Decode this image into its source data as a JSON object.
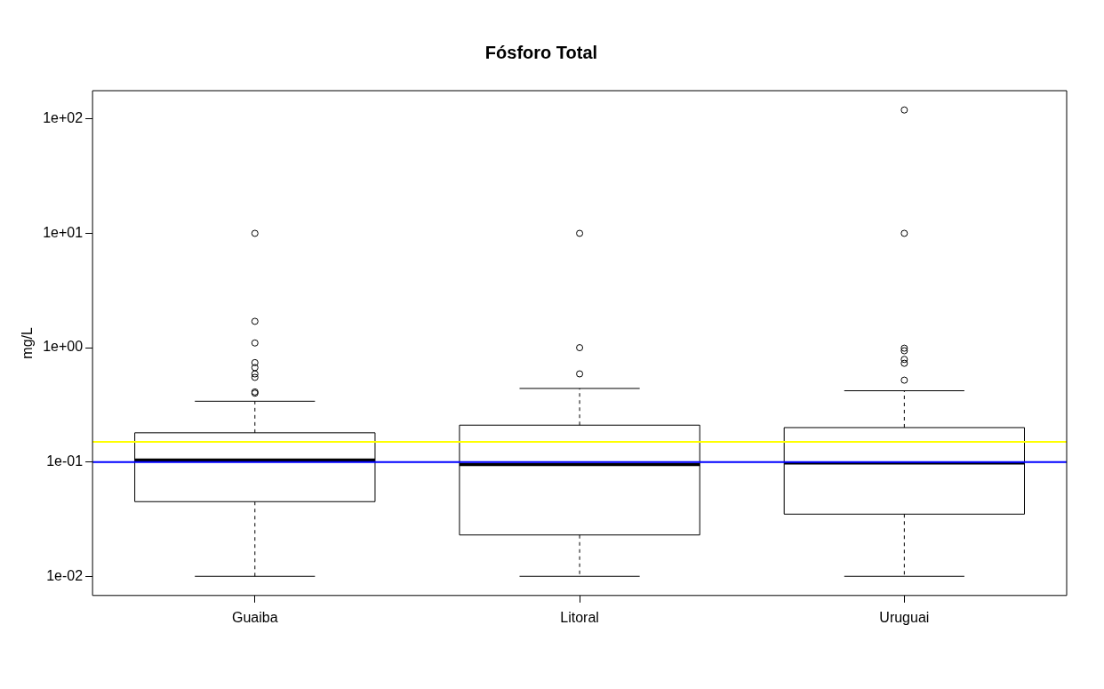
{
  "chart_data": {
    "type": "box",
    "title": "Fósforo Total",
    "ylabel": "mg/L",
    "categories": [
      "Guaiba",
      "Litoral",
      "Uruguai"
    ],
    "boxes": [
      {
        "low": 0.01,
        "q1": 0.045,
        "median": 0.104,
        "q3": 0.18,
        "high": 0.34,
        "outliers": [
          0.4,
          0.41,
          0.55,
          0.59,
          0.67,
          0.74,
          1.1,
          1.7,
          10
        ]
      },
      {
        "low": 0.01,
        "q1": 0.023,
        "median": 0.095,
        "q3": 0.21,
        "high": 0.44,
        "outliers": [
          0.59,
          1.0,
          10
        ]
      },
      {
        "low": 0.01,
        "q1": 0.035,
        "median": 0.098,
        "q3": 0.2,
        "high": 0.42,
        "outliers": [
          0.52,
          0.73,
          0.79,
          0.94,
          0.99,
          10,
          120
        ]
      }
    ],
    "color": "#000000",
    "log": true,
    "ylim": [
      0.0068,
      177
    ],
    "yticks": [
      {
        "value": 0.01,
        "label": "1e-02"
      },
      {
        "value": 0.1,
        "label": "1e-01"
      },
      {
        "value": 1,
        "label": "1e+00"
      },
      {
        "value": 10,
        "label": "1e+01"
      },
      {
        "value": 100,
        "label": "1e+02"
      }
    ],
    "grid": false,
    "legend": false,
    "ref_lines": [
      {
        "axis": "y",
        "value": 0.15,
        "color": "#ffff00"
      },
      {
        "axis": "y",
        "value": 0.1,
        "color": "#0000ff"
      }
    ]
  }
}
